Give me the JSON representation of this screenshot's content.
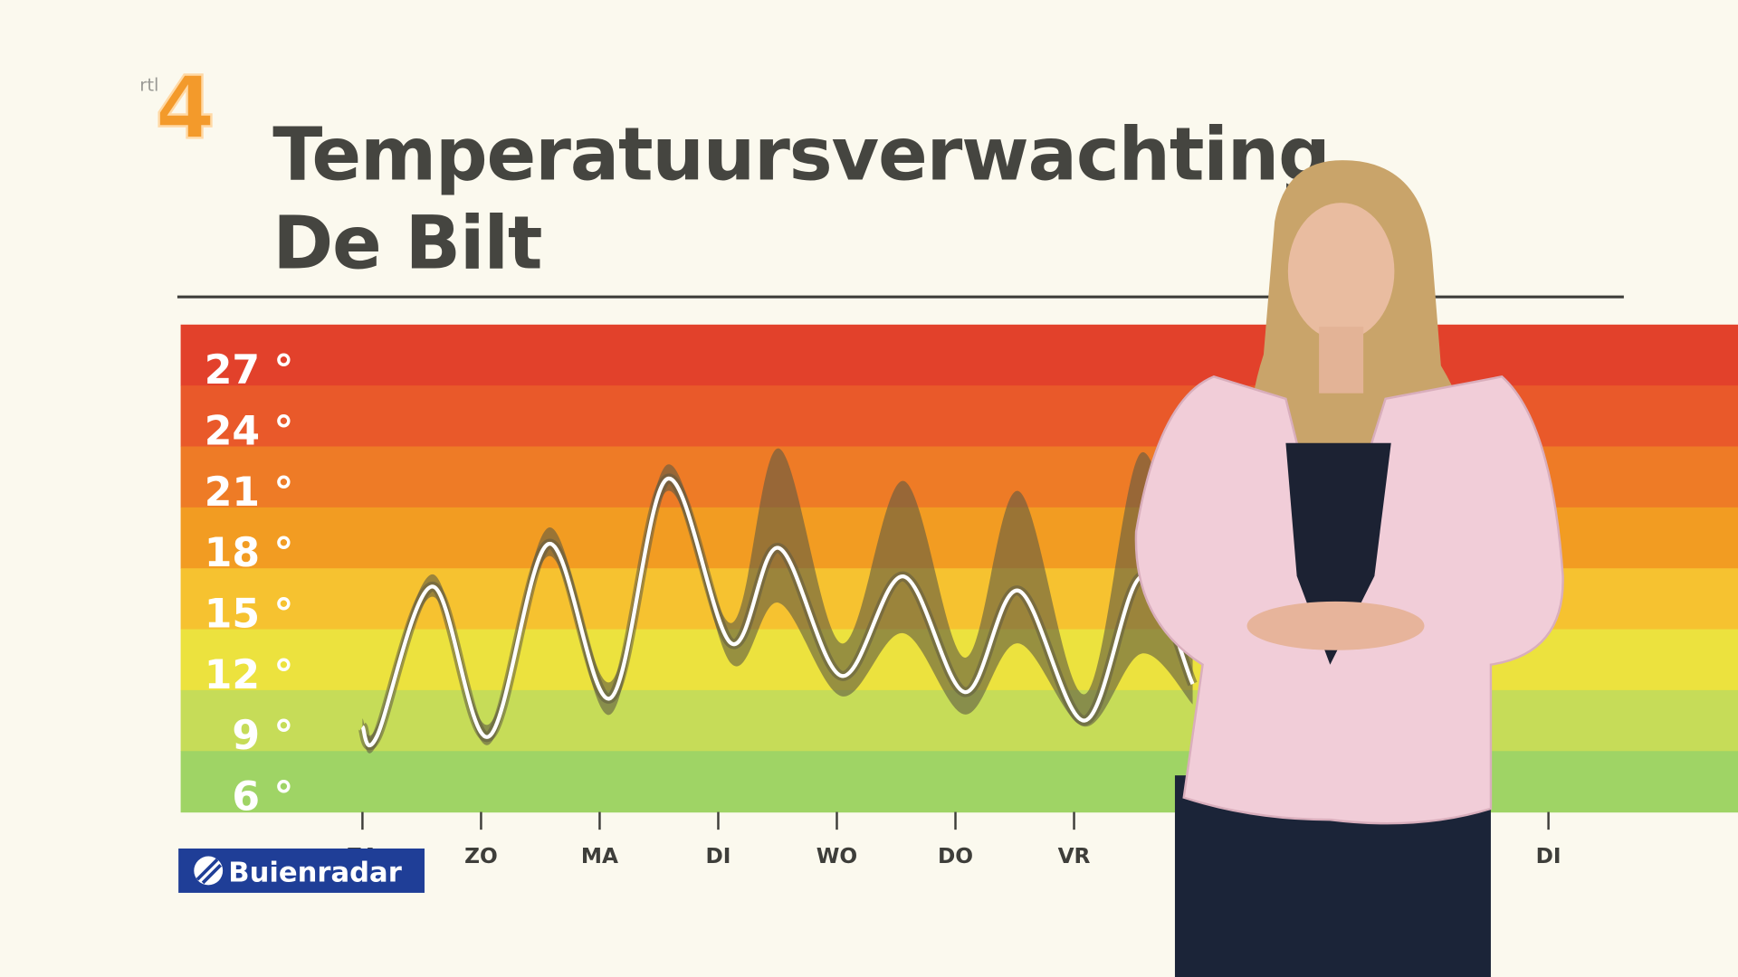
{
  "header": {
    "logo_text": "rtl",
    "logo_number": "4",
    "title": "Temperatuursverwachting",
    "subtitle": "De Bilt"
  },
  "chart_data": {
    "type": "line",
    "categories": [
      "ZA",
      "ZO",
      "MA",
      "DI",
      "WO",
      "DO",
      "VR",
      null,
      null,
      null,
      "DI"
    ],
    "x": [
      0,
      0.12,
      0.59,
      1.06,
      1.57,
      2.09,
      2.57,
      3.11,
      3.51,
      4.04,
      4.56,
      5.08,
      5.53,
      6.09,
      6.57,
      7.0
    ],
    "values": [
      9.4,
      8.9,
      16.3,
      8.9,
      18.4,
      10.8,
      21.6,
      13.5,
      18.2,
      11.9,
      16.8,
      11.1,
      16.1,
      9.7,
      16.8,
      11.5
    ],
    "range_low": [
      9.0,
      8.5,
      15.8,
      8.5,
      17.8,
      10.0,
      21.0,
      12.5,
      15.5,
      10.9,
      14.0,
      10.0,
      13.5,
      9.4,
      13.0,
      10.5
    ],
    "range_high": [
      9.8,
      9.4,
      16.9,
      9.5,
      19.2,
      11.6,
      22.3,
      14.5,
      23.1,
      13.5,
      21.5,
      12.8,
      21.0,
      11.0,
      22.9,
      13.5
    ],
    "color": "#ffffff",
    "range_color": "#5f5a42",
    "xlim": [
      0,
      10
    ],
    "ylim": [
      5.2,
      29.2
    ],
    "yticks": [
      {
        "value": 27,
        "label": "27 °"
      },
      {
        "value": 24,
        "label": "24 °"
      },
      {
        "value": 21,
        "label": "21 °"
      },
      {
        "value": 18,
        "label": "18 °"
      },
      {
        "value": 15,
        "label": "15 °"
      },
      {
        "value": 12,
        "label": "12 °"
      },
      {
        "value": 9,
        "label": "9 °"
      },
      {
        "value": 6,
        "label": "6 °"
      }
    ],
    "band_colors": [
      "#e2412b",
      "#e9592a",
      "#ee7b26",
      "#f29c22",
      "#f6c230",
      "#ece23e",
      "#c6dc58",
      "#9fd465"
    ]
  },
  "footer": {
    "brand": "Buienradar"
  }
}
